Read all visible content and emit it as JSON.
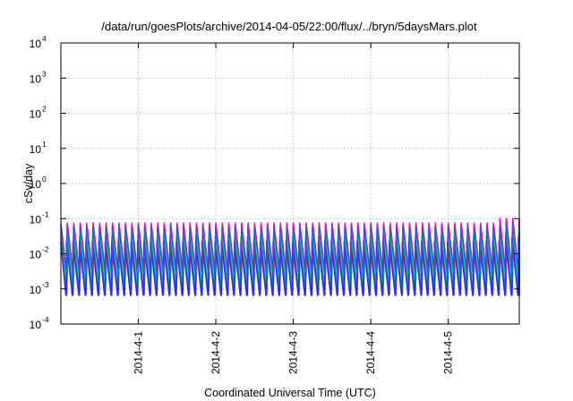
{
  "chart_data": {
    "type": "line",
    "title": "/data/run/goesPlots/archive/2014-04-05/22:00/flux/../bryn/5daysMars.plot",
    "xlabel": "Coordinated Universal Time (UTC)",
    "ylabel": "cSv/day",
    "y_scale": "log",
    "ylim": [
      0.0001,
      10000
    ],
    "xlim": [
      "2014-03-31T00:00",
      "2014-04-05T22:00"
    ],
    "y_ticks": [
      {
        "base": "10",
        "exp": "-4",
        "value": 0.0001
      },
      {
        "base": "10",
        "exp": "-3",
        "value": 0.001
      },
      {
        "base": "10",
        "exp": "-2",
        "value": 0.01
      },
      {
        "base": "10",
        "exp": "-1",
        "value": 0.1
      },
      {
        "base": "10",
        "exp": "0",
        "value": 1
      },
      {
        "base": "10",
        "exp": "1",
        "value": 10
      },
      {
        "base": "10",
        "exp": "2",
        "value": 100
      },
      {
        "base": "10",
        "exp": "3",
        "value": 1000
      },
      {
        "base": "10",
        "exp": "4",
        "value": 10000
      }
    ],
    "x_ticks": [
      "2014-4-1",
      "2014-4-2",
      "2014-4-3",
      "2014-4-4",
      "2014-4-5"
    ],
    "grid": true,
    "colors": [
      "#ff00ff",
      "#cc00cc",
      "#00e5e5",
      "#1aa84a",
      "#2c2cf0",
      "#1560ff",
      "#e81c1c"
    ],
    "pattern": {
      "description": "sawtooth, one cycle every ~2 hours: sharp rise to a peak then gradual decay",
      "cycle_hours": 2.0,
      "end_peak_boost_start": "2014-04-05T16:00",
      "series_ranges": [
        {
          "peak": 0.075,
          "trough": 0.0026
        },
        {
          "peak": 0.055,
          "trough": 0.0018
        },
        {
          "peak": 0.042,
          "trough": 0.0013
        },
        {
          "peak": 0.03,
          "trough": 0.0009
        },
        {
          "peak": 0.022,
          "trough": 0.00065
        }
      ]
    }
  }
}
